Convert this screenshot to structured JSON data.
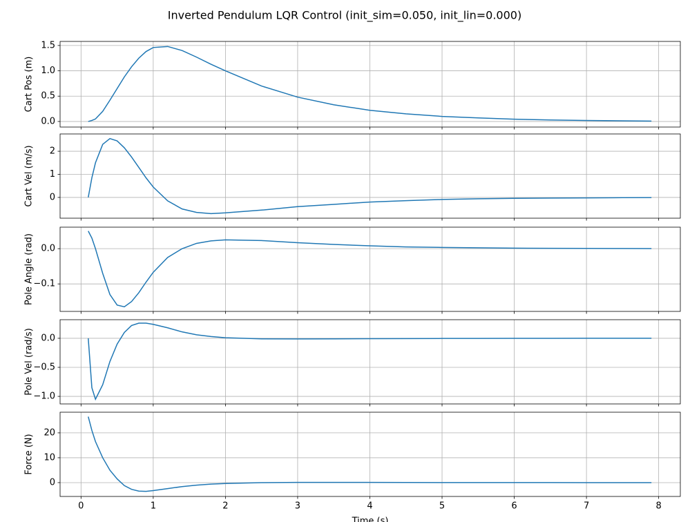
{
  "title": "Inverted Pendulum LQR Control (init_sim=0.050, init_lin=0.000)",
  "chart_data": [
    {
      "type": "line",
      "ylabel": "Cart Pos (m)",
      "color": "#1f77b4",
      "grid": true,
      "x": [
        0.1,
        0.15,
        0.2,
        0.3,
        0.4,
        0.5,
        0.6,
        0.7,
        0.8,
        0.9,
        1.0,
        1.2,
        1.4,
        1.6,
        1.8,
        2.0,
        2.5,
        3,
        3.5,
        4,
        4.5,
        5,
        5.5,
        6,
        6.5,
        7,
        7.5,
        7.9
      ],
      "values": [
        0,
        0.02,
        0.05,
        0.2,
        0.42,
        0.65,
        0.88,
        1.08,
        1.25,
        1.38,
        1.46,
        1.48,
        1.4,
        1.27,
        1.13,
        1.0,
        0.7,
        0.48,
        0.33,
        0.22,
        0.15,
        0.1,
        0.07,
        0.045,
        0.03,
        0.02,
        0.012,
        0.008
      ],
      "xlim": [
        -0.29,
        8.3
      ],
      "ylim": [
        -0.11,
        1.58
      ],
      "yticks": [
        {
          "value": 0,
          "label": "0.0"
        },
        0.5,
        {
          "value": 1,
          "label": "1.0"
        },
        1.5
      ]
    },
    {
      "type": "line",
      "ylabel": "Cart Vel (m/s)",
      "color": "#1f77b4",
      "grid": true,
      "x": [
        0.1,
        0.15,
        0.2,
        0.3,
        0.4,
        0.5,
        0.6,
        0.7,
        0.8,
        0.9,
        1.0,
        1.2,
        1.4,
        1.6,
        1.8,
        2.0,
        2.5,
        3,
        3.5,
        4,
        4.5,
        5,
        5.5,
        6,
        6.5,
        7,
        7.5,
        7.9
      ],
      "values": [
        0,
        0.85,
        1.5,
        2.3,
        2.55,
        2.45,
        2.15,
        1.75,
        1.3,
        0.85,
        0.45,
        -0.15,
        -0.5,
        -0.65,
        -0.7,
        -0.67,
        -0.55,
        -0.4,
        -0.3,
        -0.2,
        -0.14,
        -0.09,
        -0.06,
        -0.04,
        -0.03,
        -0.02,
        -0.01,
        -0.007
      ],
      "xlim": [
        -0.29,
        8.3
      ],
      "ylim": [
        -0.9,
        2.75
      ],
      "yticks": [
        0,
        1,
        2
      ]
    },
    {
      "type": "line",
      "ylabel": "Pole Angle (rad)",
      "color": "#1f77b4",
      "grid": true,
      "x": [
        0.1,
        0.15,
        0.2,
        0.3,
        0.4,
        0.5,
        0.6,
        0.7,
        0.8,
        0.9,
        1.0,
        1.2,
        1.4,
        1.6,
        1.8,
        2.0,
        2.5,
        3,
        3.5,
        4,
        4.5,
        5,
        5.5,
        6,
        6.5,
        7,
        7.5,
        7.9
      ],
      "values": [
        0.05,
        0.03,
        0.0,
        -0.07,
        -0.13,
        -0.16,
        -0.165,
        -0.15,
        -0.125,
        -0.095,
        -0.067,
        -0.025,
        0.0,
        0.015,
        0.022,
        0.025,
        0.023,
        0.017,
        0.012,
        0.008,
        0.005,
        0.0035,
        0.0025,
        0.0015,
        0.001,
        0.0008,
        0.0005,
        0.0003
      ],
      "xlim": [
        -0.29,
        8.3
      ],
      "ylim": [
        -0.178,
        0.061
      ],
      "yticks": [
        {
          "value": -0.1,
          "label": "−0.1"
        },
        {
          "value": 0,
          "label": "0.0"
        }
      ]
    },
    {
      "type": "line",
      "ylabel": "Pole Vel (rad/s)",
      "color": "#1f77b4",
      "grid": true,
      "x": [
        0.1,
        0.15,
        0.2,
        0.3,
        0.4,
        0.5,
        0.6,
        0.7,
        0.8,
        0.9,
        1.0,
        1.2,
        1.4,
        1.6,
        1.8,
        2.0,
        2.5,
        3,
        3.5,
        4,
        4.5,
        5,
        5.5,
        6,
        6.5,
        7,
        7.5,
        7.9
      ],
      "values": [
        0,
        -0.85,
        -1.05,
        -0.8,
        -0.4,
        -0.1,
        0.1,
        0.22,
        0.26,
        0.26,
        0.24,
        0.18,
        0.11,
        0.06,
        0.03,
        0.01,
        -0.01,
        -0.012,
        -0.01,
        -0.007,
        -0.005,
        -0.003,
        -0.002,
        -0.001,
        -0.001,
        0,
        0,
        0
      ],
      "xlim": [
        -0.29,
        8.3
      ],
      "ylim": [
        -1.13,
        0.32
      ],
      "yticks": [
        {
          "value": -1,
          "label": "−1.0"
        },
        {
          "value": -0.5,
          "label": "−0.5"
        },
        {
          "value": 0,
          "label": "0.0"
        }
      ]
    },
    {
      "type": "line",
      "ylabel": "Force (N)",
      "xlabel": "Time (s)",
      "color": "#1f77b4",
      "grid": true,
      "x": [
        0.1,
        0.15,
        0.2,
        0.3,
        0.4,
        0.5,
        0.6,
        0.7,
        0.8,
        0.9,
        1.0,
        1.2,
        1.4,
        1.6,
        1.8,
        2.0,
        2.5,
        3,
        3.5,
        4,
        4.5,
        5,
        5.5,
        6,
        6.5,
        7,
        7.5,
        7.9
      ],
      "values": [
        26.5,
        21,
        16.5,
        10,
        5,
        1.5,
        -1.2,
        -2.7,
        -3.4,
        -3.5,
        -3.2,
        -2.4,
        -1.6,
        -1.0,
        -0.6,
        -0.35,
        0,
        0.1,
        0.1,
        0.08,
        0.05,
        0.03,
        0.02,
        0.01,
        0.01,
        0.005,
        0.003,
        0.002
      ],
      "xlim": [
        -0.29,
        8.3
      ],
      "ylim": [
        -5.56,
        28.3
      ],
      "xticks": [
        0,
        1,
        2,
        3,
        4,
        5,
        6,
        7,
        8
      ],
      "yticks": [
        0,
        10,
        20
      ]
    }
  ]
}
